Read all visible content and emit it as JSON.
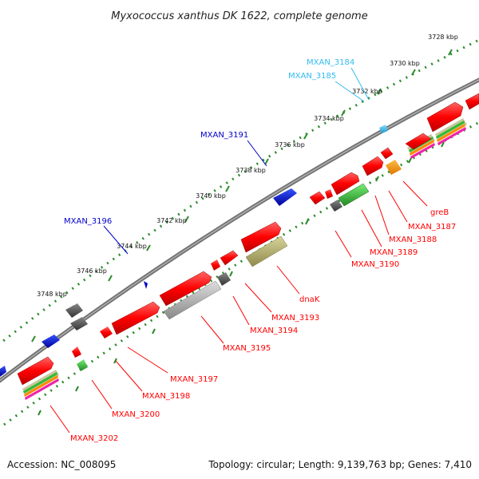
{
  "title": "Myxococcus xanthus DK 1622, complete genome",
  "footer": {
    "accession": "Accession: NC_008095",
    "topology": "Topology: circular; Length: 9,139,763 bp; Genes: 7,410"
  },
  "ticks": [
    "3728 kbp",
    "3730 kbp",
    "3732 kbp",
    "3734 kbp",
    "3736 kbp",
    "3738 kbp",
    "3740 kbp",
    "3742 kbp",
    "3744 kbp",
    "3746 kbp",
    "3748 kbp"
  ],
  "gene_labels": {
    "MXAN_3184": "MXAN_3184",
    "MXAN_3185": "MXAN_3185",
    "MXAN_3191": "MXAN_3191",
    "MXAN_3196": "MXAN_3196",
    "greB": "greB",
    "MXAN_3187": "MXAN_3187",
    "MXAN_3188": "MXAN_3188",
    "MXAN_3189": "MXAN_3189",
    "MXAN_3190": "MXAN_3190",
    "dnaK": "dnaK",
    "MXAN_3193": "MXAN_3193",
    "MXAN_3194": "MXAN_3194",
    "MXAN_3195": "MXAN_3195",
    "MXAN_3197": "MXAN_3197",
    "MXAN_3198": "MXAN_3198",
    "MXAN_3200": "MXAN_3200",
    "MXAN_3202": "MXAN_3202"
  },
  "colors": {
    "red": "#ff0000",
    "blue": "#0000cc",
    "cyan": "#33bbee",
    "green": "#33bb33",
    "olive": "#b8b36a",
    "gray": "#999999",
    "darkgray": "#555555",
    "orange": "#ff8800",
    "backbone": "#808080"
  }
}
